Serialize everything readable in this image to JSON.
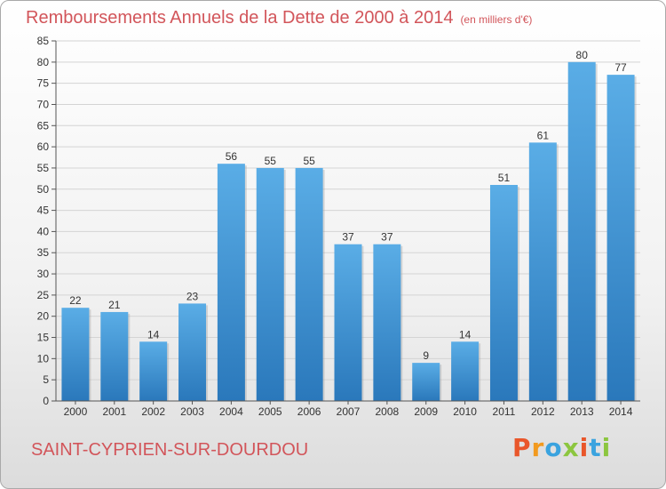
{
  "header": {
    "title": "Remboursements Annuels de la Dette de 2000 à 2014",
    "unit": "(en milliers d'€)"
  },
  "footer": {
    "commune": "SAINT-CYPRIEN-SUR-DOURDOU",
    "logo": "Proxiti"
  },
  "colors": {
    "bar_top": "#5aade6",
    "bar_bottom": "#2a78bb",
    "title": "#d2555a",
    "logo": [
      "#e9562a",
      "#f29a1f",
      "#3aa3df",
      "#8cc63f",
      "#e9562a",
      "#3aa3df",
      "#8cc63f"
    ]
  },
  "chart_data": {
    "type": "bar",
    "title": "Remboursements Annuels de la Dette de 2000 à 2014",
    "categories": [
      "2000",
      "2001",
      "2002",
      "2003",
      "2004",
      "2005",
      "2006",
      "2007",
      "2008",
      "2009",
      "2010",
      "2011",
      "2012",
      "2013",
      "2014"
    ],
    "values": [
      22,
      21,
      14,
      23,
      56,
      55,
      55,
      37,
      37,
      9,
      14,
      51,
      61,
      80,
      77
    ],
    "ylim": [
      0,
      85
    ],
    "yticks": [
      0,
      5,
      10,
      15,
      20,
      25,
      30,
      35,
      40,
      45,
      50,
      55,
      60,
      65,
      70,
      75,
      80,
      85
    ],
    "grid": true,
    "legend": "none"
  }
}
